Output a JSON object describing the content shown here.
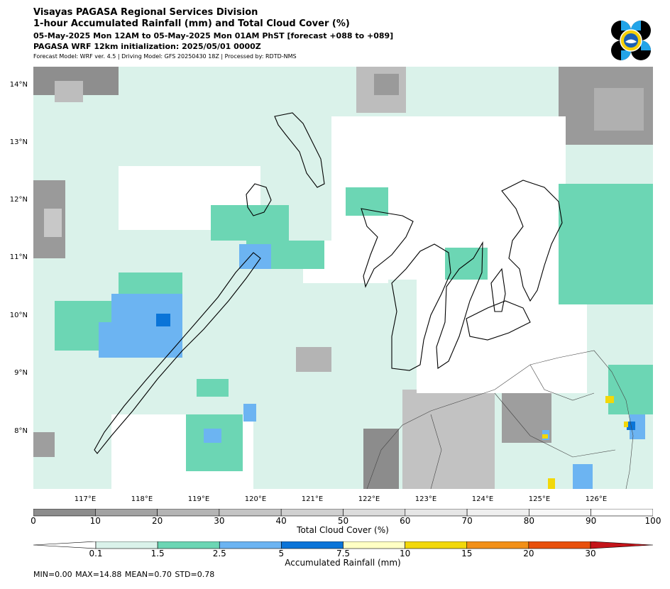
{
  "header": {
    "line1": "Visayas PAGASA Regional Services Division",
    "line2": "1-hour Accumulated Rainfall (mm) and Total Cloud Cover (%)",
    "line3": "05-May-2025 Mon 12AM to 05-May-2025 Mon 01AM PhST [forecast +088 to +089]",
    "line4": "PAGASA WRF 12km initialization: 2025/05/01 0000Z",
    "line5": "Forecast Model: WRF ver. 4.5 | Driving Model: GFS 20250430 18Z | Processed by: RDTD-NMS"
  },
  "map": {
    "lat_labels": [
      "14°N",
      "13°N",
      "12°N",
      "11°N",
      "10°N",
      "9°N",
      "8°N"
    ],
    "lon_labels": [
      "117°E",
      "118°E",
      "119°E",
      "120°E",
      "121°E",
      "122°E",
      "123°E",
      "124°E",
      "125°E",
      "126°E"
    ]
  },
  "cloud_colorbar": {
    "label": "Total Cloud Cover (%)",
    "ticks": [
      "0",
      "10",
      "20",
      "30",
      "40",
      "50",
      "60",
      "70",
      "80",
      "90",
      "100"
    ],
    "colors": [
      "#8c8c8c",
      "#a2a2a2",
      "#b4b4b4",
      "#c4c4c4",
      "#d0d0d0",
      "#dcdcdc",
      "#e6e6e6",
      "#efefef",
      "#f7f7f7",
      "#ffffff"
    ]
  },
  "rain_colorbar": {
    "label": "Accumulated Rainfall (mm)",
    "ticks": [
      "0.1",
      "1.5",
      "2.5",
      "5",
      "7.5",
      "10",
      "15",
      "20",
      "30"
    ],
    "colors": [
      "#daf2ea",
      "#6cd6b4",
      "#6cb4f2",
      "#0a74d8",
      "#ffffc4",
      "#f2d80a",
      "#f29018",
      "#e8500c"
    ],
    "under_color": "#ffffff",
    "over_color": "#c4141a"
  },
  "stats": "MIN=0.00   MAX=14.88   MEAN=0.70   STD=0.78"
}
